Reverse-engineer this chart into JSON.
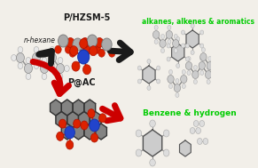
{
  "background_color": "#f2efe9",
  "nhexane_label": "n-hexane",
  "pac_label": "P@AC",
  "phzsm_label": "P/HZSM-5",
  "top_product_label": "Benzene & hydrogen",
  "bottom_product_label": "alkanes, alkenes & aromatics",
  "top_arrow_color": "#cc0000",
  "bottom_arrow_color": "#1a1a1a",
  "label_color_green": "#00cc00",
  "label_color_black": "#1a1a1a",
  "figsize": [
    2.91,
    1.89
  ],
  "dpi": 100,
  "xlim": [
    0,
    291
  ],
  "ylim": [
    0,
    189
  ]
}
